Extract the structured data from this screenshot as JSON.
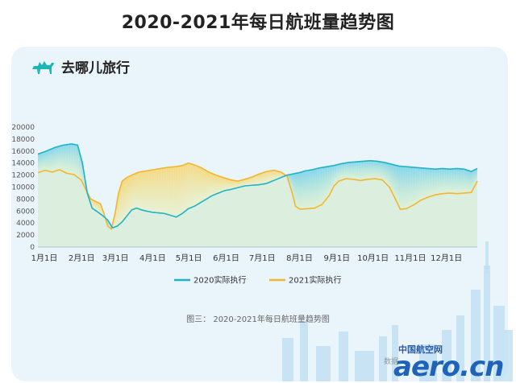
{
  "page": {
    "title": "2020-2021年每日航班量趋势图"
  },
  "brand": {
    "name": "去哪儿旅行",
    "icon": "camel-icon",
    "color": "#1ab7b7"
  },
  "figure": {
    "caption": "图三： 2020-2021年每日航班量趋势图",
    "source": "数据",
    "watermark_cn": "中国航空网",
    "watermark_en": "aero.cn"
  },
  "colors": {
    "s2020": "#1fb3c7",
    "s2021": "#f2b62f",
    "fill2020": "#7fd4ea",
    "fill2021": "#f6d77a",
    "skyline": "#bfe0f3"
  },
  "chart_data": {
    "type": "line",
    "xlabels": [
      "1月1日",
      "2月1日",
      "3月1日",
      "4月1日",
      "5月1日",
      "6月1日",
      "7月1日",
      "8月1日",
      "9月1日",
      "10月1日",
      "11月1日",
      "12月1日"
    ],
    "ylim": [
      0,
      20000
    ],
    "yticks": [
      0,
      2000,
      4000,
      6000,
      8000,
      10000,
      12000,
      14000,
      16000,
      18000,
      20000
    ],
    "legend_position": "bottom",
    "series": [
      {
        "name": "2020实际执行",
        "points": [
          [
            0,
            15500
          ],
          [
            7,
            16000
          ],
          [
            14,
            16600
          ],
          [
            21,
            17000
          ],
          [
            28,
            17200
          ],
          [
            33,
            17000
          ],
          [
            37,
            14000
          ],
          [
            41,
            9000
          ],
          [
            45,
            6500
          ],
          [
            50,
            5800
          ],
          [
            54,
            5200
          ],
          [
            58,
            4500
          ],
          [
            62,
            3200
          ],
          [
            66,
            3500
          ],
          [
            70,
            4200
          ],
          [
            74,
            5200
          ],
          [
            78,
            6200
          ],
          [
            82,
            6500
          ],
          [
            86,
            6200
          ],
          [
            90,
            6000
          ],
          [
            95,
            5800
          ],
          [
            100,
            5700
          ],
          [
            105,
            5600
          ],
          [
            110,
            5300
          ],
          [
            115,
            5000
          ],
          [
            120,
            5600
          ],
          [
            125,
            6400
          ],
          [
            130,
            6800
          ],
          [
            135,
            7400
          ],
          [
            140,
            8000
          ],
          [
            145,
            8600
          ],
          [
            150,
            9000
          ],
          [
            155,
            9400
          ],
          [
            160,
            9600
          ],
          [
            166,
            9900
          ],
          [
            172,
            10200
          ],
          [
            178,
            10300
          ],
          [
            184,
            10400
          ],
          [
            190,
            10600
          ],
          [
            196,
            11100
          ],
          [
            202,
            11600
          ],
          [
            207,
            12000
          ],
          [
            212,
            12200
          ],
          [
            217,
            12400
          ],
          [
            222,
            12700
          ],
          [
            228,
            12900
          ],
          [
            234,
            13200
          ],
          [
            240,
            13400
          ],
          [
            246,
            13600
          ],
          [
            252,
            13900
          ],
          [
            258,
            14100
          ],
          [
            264,
            14200
          ],
          [
            270,
            14300
          ],
          [
            276,
            14400
          ],
          [
            282,
            14300
          ],
          [
            288,
            14100
          ],
          [
            294,
            13800
          ],
          [
            300,
            13500
          ],
          [
            306,
            13400
          ],
          [
            312,
            13300
          ],
          [
            318,
            13200
          ],
          [
            324,
            13100
          ],
          [
            330,
            13000
          ],
          [
            336,
            13100
          ],
          [
            342,
            13000
          ],
          [
            348,
            13100
          ],
          [
            354,
            13000
          ],
          [
            360,
            12600
          ],
          [
            365,
            13100
          ]
        ]
      },
      {
        "name": "2021实际执行",
        "points": [
          [
            0,
            12400
          ],
          [
            6,
            12800
          ],
          [
            12,
            12500
          ],
          [
            18,
            12900
          ],
          [
            24,
            12300
          ],
          [
            30,
            12100
          ],
          [
            36,
            11200
          ],
          [
            40,
            9500
          ],
          [
            44,
            8000
          ],
          [
            48,
            7600
          ],
          [
            52,
            7200
          ],
          [
            55,
            5500
          ],
          [
            58,
            3500
          ],
          [
            61,
            3000
          ],
          [
            64,
            5500
          ],
          [
            67,
            9000
          ],
          [
            70,
            11000
          ],
          [
            74,
            11600
          ],
          [
            78,
            12000
          ],
          [
            84,
            12500
          ],
          [
            90,
            12700
          ],
          [
            96,
            12900
          ],
          [
            102,
            13100
          ],
          [
            108,
            13300
          ],
          [
            114,
            13400
          ],
          [
            120,
            13600
          ],
          [
            125,
            14000
          ],
          [
            130,
            13700
          ],
          [
            136,
            13200
          ],
          [
            142,
            12500
          ],
          [
            148,
            12000
          ],
          [
            154,
            11600
          ],
          [
            160,
            11200
          ],
          [
            166,
            11000
          ],
          [
            172,
            11300
          ],
          [
            178,
            11700
          ],
          [
            184,
            12200
          ],
          [
            190,
            12600
          ],
          [
            196,
            12800
          ],
          [
            202,
            12500
          ],
          [
            207,
            11800
          ],
          [
            211,
            9200
          ],
          [
            214,
            6800
          ],
          [
            218,
            6300
          ],
          [
            224,
            6400
          ],
          [
            230,
            6500
          ],
          [
            236,
            7100
          ],
          [
            242,
            8600
          ],
          [
            246,
            10200
          ],
          [
            250,
            11000
          ],
          [
            256,
            11400
          ],
          [
            262,
            11300
          ],
          [
            268,
            11100
          ],
          [
            274,
            11300
          ],
          [
            280,
            11400
          ],
          [
            286,
            11200
          ],
          [
            292,
            10000
          ],
          [
            297,
            8000
          ],
          [
            301,
            6300
          ],
          [
            306,
            6400
          ],
          [
            312,
            7000
          ],
          [
            318,
            7800
          ],
          [
            324,
            8300
          ],
          [
            330,
            8700
          ],
          [
            336,
            8900
          ],
          [
            342,
            9000
          ],
          [
            348,
            8900
          ],
          [
            354,
            9000
          ],
          [
            360,
            9100
          ],
          [
            365,
            11000
          ]
        ]
      }
    ]
  }
}
